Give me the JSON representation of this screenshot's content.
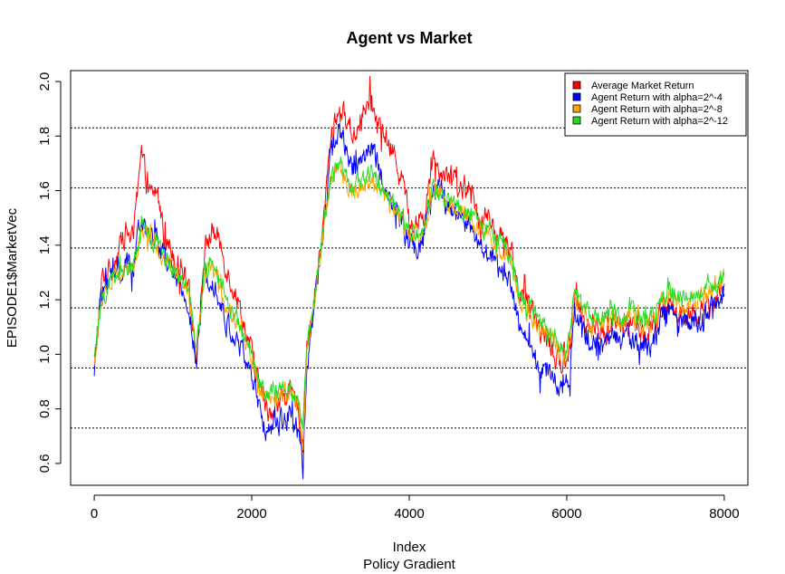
{
  "chart_data": {
    "type": "line",
    "title": "Agent vs Market",
    "xlabel": "Index",
    "xlabel2": "Policy Gradient",
    "ylabel": "EPISODE1$MarketVec",
    "xlim": [
      -300,
      8300
    ],
    "ylim": [
      0.52,
      2.04
    ],
    "xticks": [
      "0",
      "2000",
      "4000",
      "6000",
      "8000"
    ],
    "yticks": [
      "0.6",
      "0.8",
      "1.0",
      "1.2",
      "1.4",
      "1.6",
      "1.8",
      "2.0"
    ],
    "hlines": [
      0.73,
      0.95,
      1.17,
      1.39,
      1.61,
      1.83
    ],
    "legend_position": "top-right",
    "series": [
      {
        "name": "Average Market Return",
        "color": "#ff0000",
        "x": [
          0,
          100,
          200,
          300,
          400,
          500,
          600,
          700,
          800,
          900,
          1000,
          1100,
          1200,
          1300,
          1400,
          1500,
          1600,
          1700,
          1800,
          1900,
          2000,
          2100,
          2200,
          2300,
          2400,
          2500,
          2600,
          2650,
          2700,
          2800,
          2900,
          3000,
          3100,
          3200,
          3300,
          3400,
          3500,
          3600,
          3700,
          3800,
          3900,
          4000,
          4100,
          4200,
          4300,
          4400,
          4500,
          4600,
          4700,
          4800,
          4900,
          5000,
          5100,
          5200,
          5300,
          5400,
          5500,
          5600,
          5700,
          5800,
          5900,
          6000,
          6050,
          6100,
          6200,
          6300,
          6400,
          6500,
          6600,
          6700,
          6800,
          6900,
          7000,
          7100,
          7200,
          7300,
          7400,
          7500,
          7600,
          7700,
          7800,
          7900,
          8000
        ],
        "values": [
          0.93,
          1.28,
          1.32,
          1.38,
          1.45,
          1.42,
          1.73,
          1.58,
          1.6,
          1.42,
          1.38,
          1.32,
          1.28,
          0.98,
          1.38,
          1.46,
          1.4,
          1.3,
          1.22,
          1.12,
          1.0,
          0.88,
          0.78,
          0.82,
          0.84,
          0.85,
          0.8,
          0.68,
          1.0,
          1.22,
          1.45,
          1.78,
          1.9,
          1.86,
          1.8,
          1.88,
          1.92,
          1.85,
          1.78,
          1.74,
          1.66,
          1.5,
          1.48,
          1.52,
          1.72,
          1.68,
          1.66,
          1.62,
          1.6,
          1.58,
          1.5,
          1.5,
          1.44,
          1.42,
          1.38,
          1.22,
          1.18,
          1.12,
          1.08,
          1.02,
          0.96,
          0.98,
          1.06,
          1.2,
          1.15,
          1.1,
          1.08,
          1.08,
          1.12,
          1.1,
          1.12,
          1.1,
          1.07,
          1.1,
          1.15,
          1.2,
          1.14,
          1.15,
          1.16,
          1.16,
          1.18,
          1.2,
          1.26
        ],
        "noise": 0.045
      },
      {
        "name": "Agent Return with alpha=2^-4",
        "color": "#0000ff",
        "x": [
          0,
          100,
          200,
          300,
          400,
          500,
          600,
          700,
          800,
          900,
          1000,
          1100,
          1200,
          1300,
          1400,
          1500,
          1600,
          1700,
          1800,
          1900,
          2000,
          2100,
          2200,
          2300,
          2400,
          2500,
          2600,
          2650,
          2700,
          2800,
          2900,
          3000,
          3100,
          3200,
          3300,
          3400,
          3500,
          3600,
          3700,
          3800,
          3900,
          4000,
          4100,
          4200,
          4300,
          4400,
          4500,
          4600,
          4700,
          4800,
          4900,
          5000,
          5100,
          5200,
          5300,
          5400,
          5500,
          5600,
          5700,
          5800,
          5900,
          6000,
          6050,
          6100,
          6200,
          6300,
          6400,
          6500,
          6600,
          6700,
          6800,
          6900,
          7000,
          7100,
          7200,
          7300,
          7400,
          7500,
          7600,
          7700,
          7800,
          7900,
          8000
        ],
        "values": [
          0.95,
          1.24,
          1.27,
          1.3,
          1.32,
          1.33,
          1.48,
          1.44,
          1.42,
          1.34,
          1.3,
          1.22,
          1.18,
          0.95,
          1.28,
          1.3,
          1.18,
          1.1,
          1.05,
          1.0,
          0.92,
          0.78,
          0.72,
          0.75,
          0.76,
          0.78,
          0.72,
          0.56,
          0.95,
          1.18,
          1.42,
          1.74,
          1.82,
          1.74,
          1.68,
          1.72,
          1.76,
          1.7,
          1.6,
          1.56,
          1.5,
          1.4,
          1.4,
          1.44,
          1.62,
          1.58,
          1.54,
          1.5,
          1.48,
          1.44,
          1.38,
          1.38,
          1.32,
          1.3,
          1.26,
          1.08,
          1.04,
          0.98,
          0.94,
          0.92,
          0.9,
          0.88,
          0.96,
          1.16,
          1.1,
          1.06,
          1.04,
          1.04,
          1.06,
          1.05,
          1.06,
          1.05,
          1.02,
          1.05,
          1.12,
          1.16,
          1.1,
          1.12,
          1.12,
          1.12,
          1.15,
          1.18,
          1.22
        ],
        "noise": 0.045
      },
      {
        "name": "Agent Return with alpha=2^-8",
        "color": "#ffa500",
        "x": [
          0,
          100,
          200,
          300,
          400,
          500,
          600,
          700,
          800,
          900,
          1000,
          1100,
          1200,
          1300,
          1400,
          1500,
          1600,
          1700,
          1800,
          1900,
          2000,
          2100,
          2200,
          2300,
          2400,
          2500,
          2600,
          2650,
          2700,
          2800,
          2900,
          3000,
          3100,
          3200,
          3300,
          3400,
          3500,
          3600,
          3700,
          3800,
          3900,
          4000,
          4100,
          4200,
          4300,
          4400,
          4500,
          4600,
          4700,
          4800,
          4900,
          5000,
          5100,
          5200,
          5300,
          5400,
          5500,
          5600,
          5700,
          5800,
          5900,
          6000,
          6050,
          6100,
          6200,
          6300,
          6400,
          6500,
          6600,
          6700,
          6800,
          6900,
          7000,
          7100,
          7200,
          7300,
          7400,
          7500,
          7600,
          7700,
          7800,
          7900,
          8000
        ],
        "values": [
          0.96,
          1.22,
          1.26,
          1.29,
          1.31,
          1.32,
          1.46,
          1.42,
          1.4,
          1.34,
          1.32,
          1.26,
          1.22,
          1.0,
          1.28,
          1.32,
          1.24,
          1.16,
          1.12,
          1.06,
          0.98,
          0.88,
          0.82,
          0.84,
          0.85,
          0.86,
          0.82,
          0.7,
          1.0,
          1.2,
          1.42,
          1.64,
          1.7,
          1.62,
          1.6,
          1.62,
          1.64,
          1.62,
          1.58,
          1.54,
          1.5,
          1.44,
          1.44,
          1.46,
          1.6,
          1.58,
          1.56,
          1.54,
          1.52,
          1.5,
          1.44,
          1.44,
          1.4,
          1.38,
          1.34,
          1.2,
          1.16,
          1.12,
          1.1,
          1.06,
          1.02,
          1.0,
          1.08,
          1.22,
          1.16,
          1.12,
          1.12,
          1.12,
          1.14,
          1.12,
          1.14,
          1.12,
          1.1,
          1.12,
          1.18,
          1.22,
          1.18,
          1.18,
          1.2,
          1.2,
          1.22,
          1.24,
          1.28
        ],
        "noise": 0.035
      },
      {
        "name": "Agent Return with alpha=2^-12",
        "color": "#22dd22",
        "x": [
          0,
          100,
          200,
          300,
          400,
          500,
          600,
          700,
          800,
          900,
          1000,
          1100,
          1200,
          1300,
          1400,
          1500,
          1600,
          1700,
          1800,
          1900,
          2000,
          2100,
          2200,
          2300,
          2400,
          2500,
          2600,
          2650,
          2700,
          2800,
          2900,
          3000,
          3100,
          3200,
          3300,
          3400,
          3500,
          3600,
          3700,
          3800,
          3900,
          4000,
          4100,
          4200,
          4300,
          4400,
          4500,
          4600,
          4700,
          4800,
          4900,
          5000,
          5100,
          5200,
          5300,
          5400,
          5500,
          5600,
          5700,
          5800,
          5900,
          6000,
          6050,
          6100,
          6200,
          6300,
          6400,
          6500,
          6600,
          6700,
          6800,
          6900,
          7000,
          7100,
          7200,
          7300,
          7400,
          7500,
          7600,
          7700,
          7800,
          7900,
          8000
        ],
        "values": [
          0.96,
          1.22,
          1.26,
          1.3,
          1.32,
          1.33,
          1.46,
          1.42,
          1.41,
          1.35,
          1.33,
          1.27,
          1.23,
          1.02,
          1.3,
          1.33,
          1.26,
          1.18,
          1.14,
          1.08,
          1.0,
          0.9,
          0.84,
          0.86,
          0.87,
          0.88,
          0.84,
          0.72,
          1.02,
          1.22,
          1.44,
          1.64,
          1.72,
          1.64,
          1.62,
          1.64,
          1.66,
          1.63,
          1.6,
          1.56,
          1.52,
          1.45,
          1.45,
          1.48,
          1.61,
          1.59,
          1.57,
          1.55,
          1.53,
          1.51,
          1.46,
          1.46,
          1.42,
          1.4,
          1.36,
          1.22,
          1.18,
          1.14,
          1.12,
          1.08,
          1.04,
          1.02,
          1.1,
          1.24,
          1.18,
          1.14,
          1.14,
          1.14,
          1.16,
          1.14,
          1.16,
          1.14,
          1.12,
          1.14,
          1.2,
          1.23,
          1.2,
          1.2,
          1.22,
          1.22,
          1.24,
          1.26,
          1.3
        ],
        "noise": 0.035
      }
    ]
  }
}
